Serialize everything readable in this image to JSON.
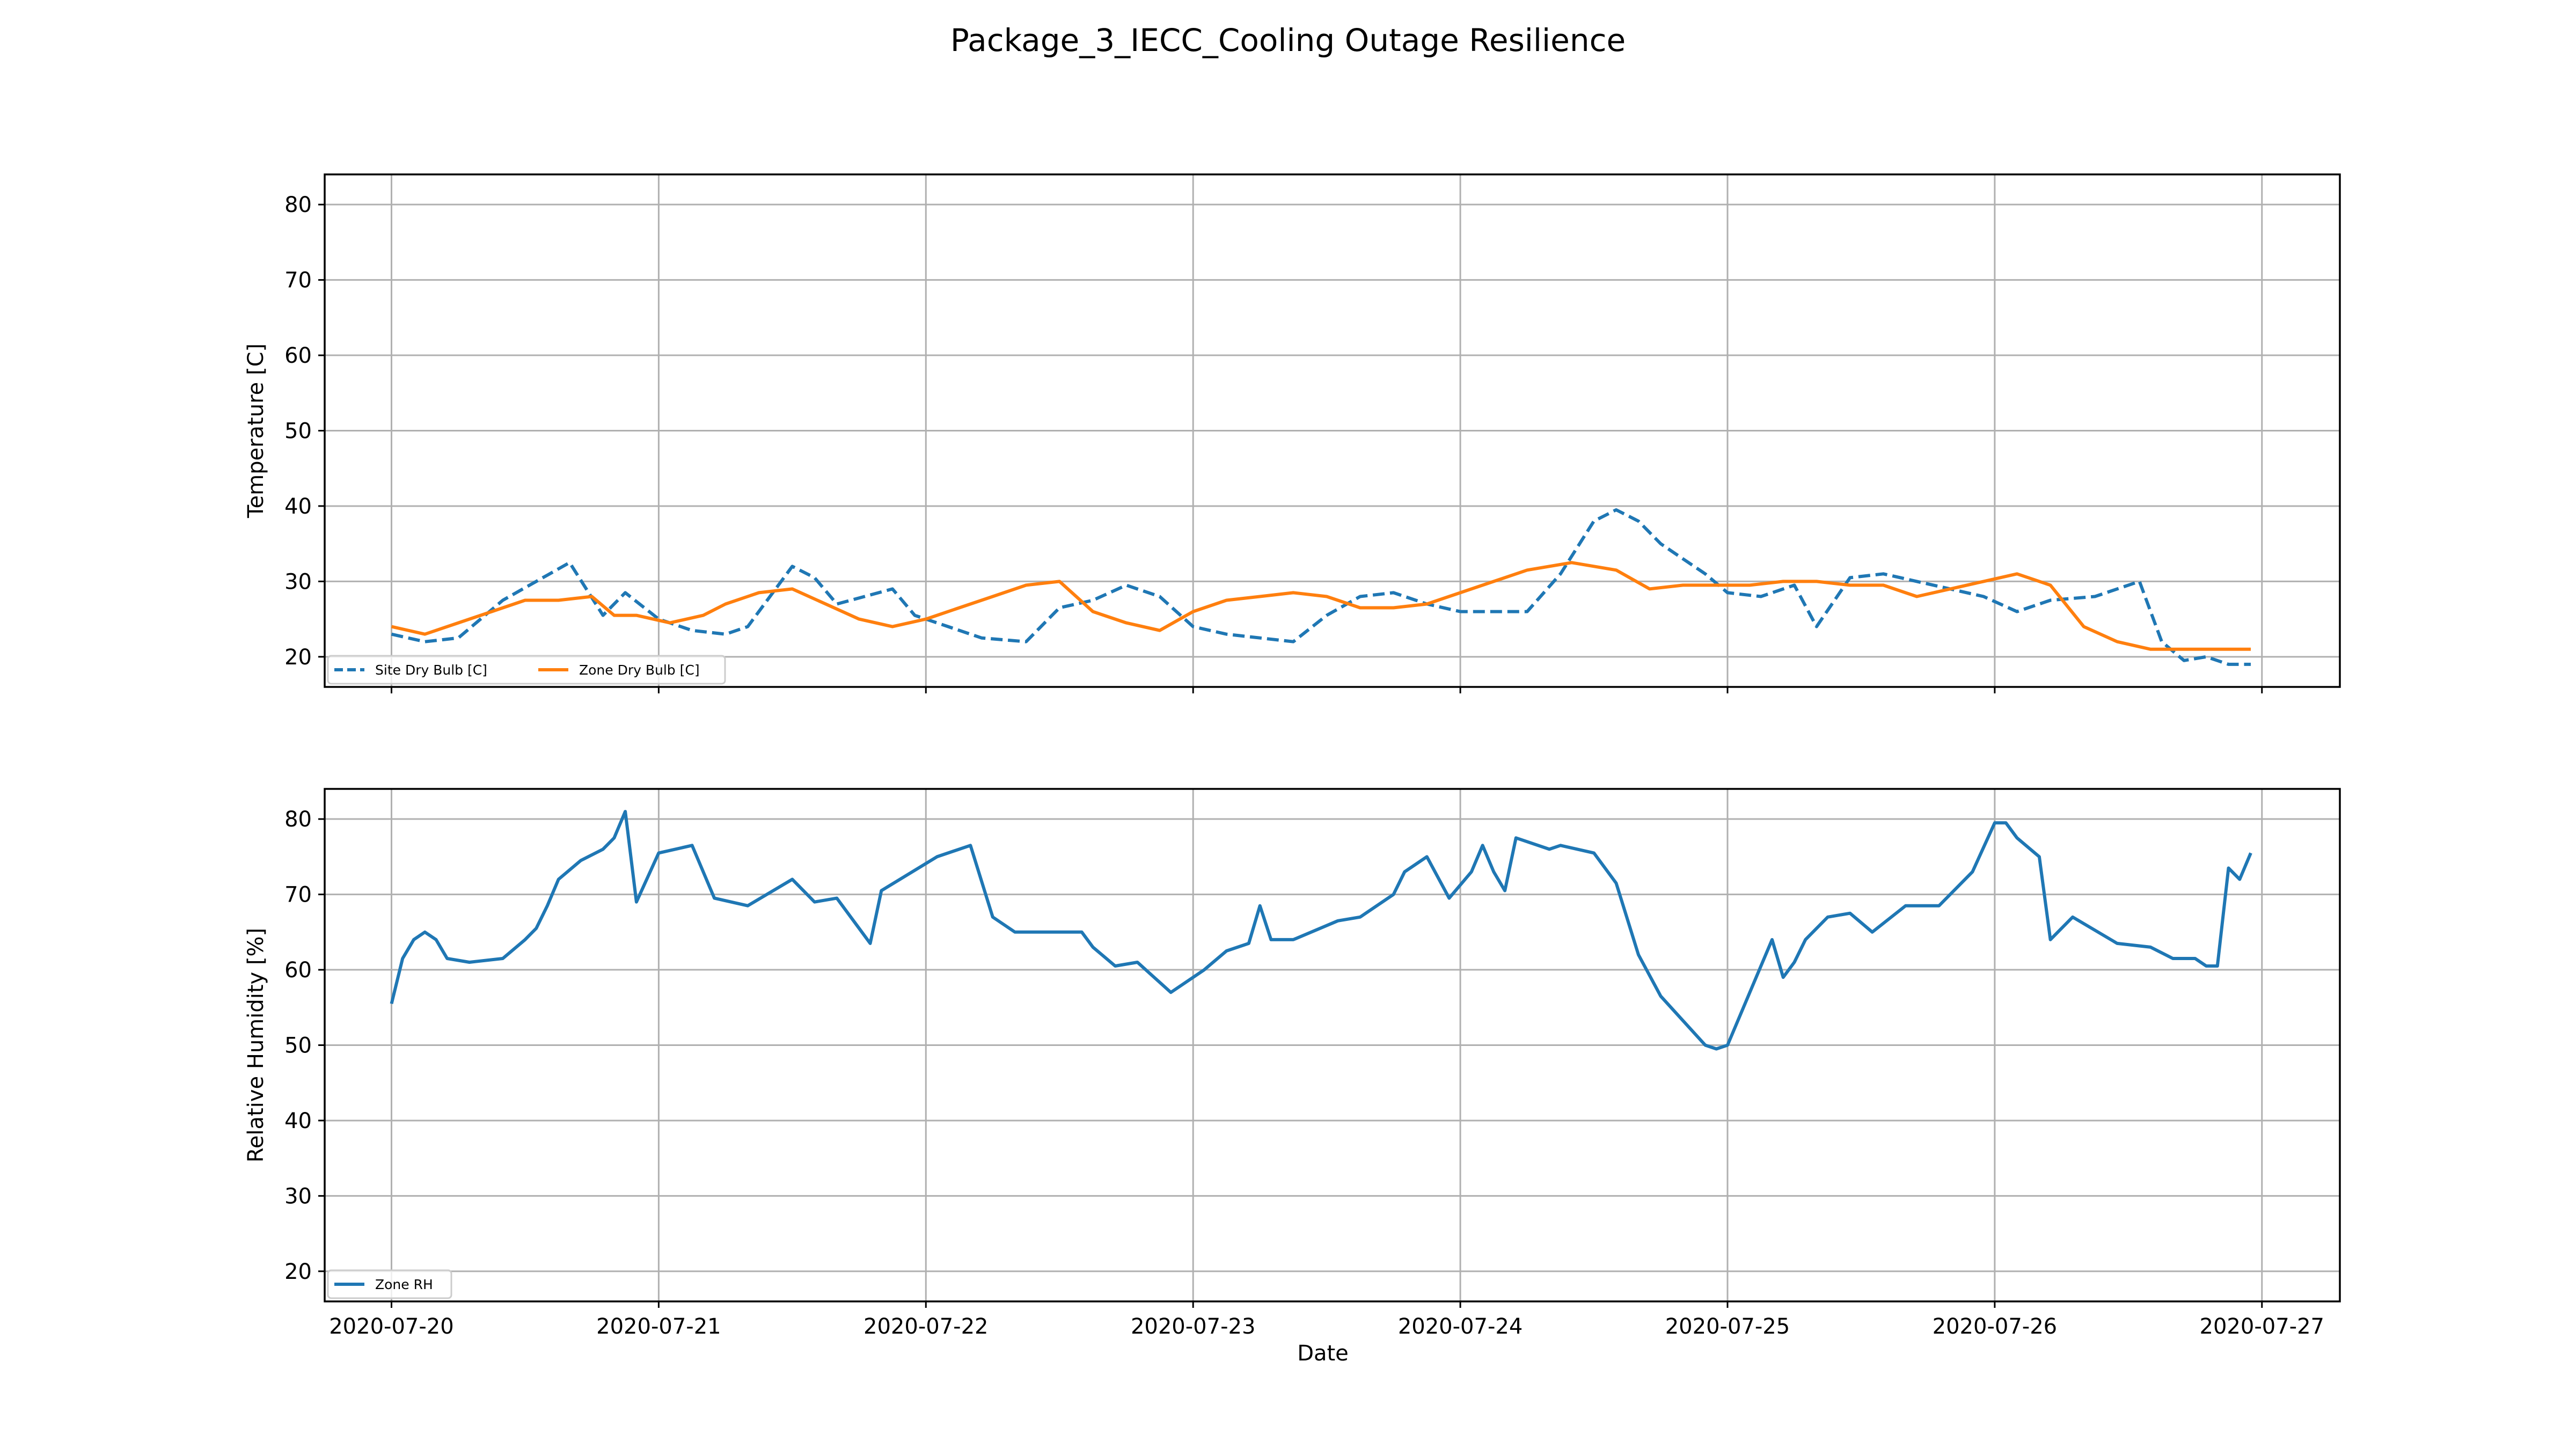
{
  "figure": {
    "title": "Package_3_IECC_Cooling Outage Resilience",
    "xlabel": "Date"
  },
  "chart_data": [
    {
      "type": "line",
      "title": "",
      "xlabel": "",
      "ylabel": "Temperature [C]",
      "xlim": [
        "2020-07-19 18:00",
        "2020-07-27 07:00"
      ],
      "ylim": [
        16,
        84
      ],
      "xticks": [
        "2020-07-20",
        "2020-07-21",
        "2020-07-22",
        "2020-07-23",
        "2020-07-24",
        "2020-07-25",
        "2020-07-26",
        "2020-07-27"
      ],
      "yticks": [
        20,
        30,
        40,
        50,
        60,
        70,
        80
      ],
      "x_tick_labels_visible": false,
      "grid": true,
      "legend": {
        "placement": "lower-left",
        "columns": 2
      },
      "series": [
        {
          "name": "Site Dry Bulb [C]",
          "color": "#1f77b4",
          "style": "dashed",
          "x": [
            "2020-07-20 00:00",
            "2020-07-20 03:00",
            "2020-07-20 06:00",
            "2020-07-20 10:00",
            "2020-07-20 16:00",
            "2020-07-20 19:00",
            "2020-07-20 21:00",
            "2020-07-21 00:00",
            "2020-07-21 03:00",
            "2020-07-21 06:00",
            "2020-07-21 08:00",
            "2020-07-21 12:00",
            "2020-07-21 14:00",
            "2020-07-21 16:00",
            "2020-07-21 21:00",
            "2020-07-21 23:00",
            "2020-07-22 02:00",
            "2020-07-22 05:00",
            "2020-07-22 09:00",
            "2020-07-22 12:00",
            "2020-07-22 15:00",
            "2020-07-22 18:00",
            "2020-07-22 21:00",
            "2020-07-23 00:00",
            "2020-07-23 03:00",
            "2020-07-23 06:00",
            "2020-07-23 09:00",
            "2020-07-23 12:00",
            "2020-07-23 15:00",
            "2020-07-23 18:00",
            "2020-07-23 21:00",
            "2020-07-24 00:00",
            "2020-07-24 03:00",
            "2020-07-24 06:00",
            "2020-07-24 09:00",
            "2020-07-24 12:00",
            "2020-07-24 14:00",
            "2020-07-24 16:00",
            "2020-07-24 18:00",
            "2020-07-24 20:00",
            "2020-07-24 22:00",
            "2020-07-25 00:00",
            "2020-07-25 03:00",
            "2020-07-25 06:00",
            "2020-07-25 08:00",
            "2020-07-25 11:00",
            "2020-07-25 14:00",
            "2020-07-25 17:00",
            "2020-07-25 20:00",
            "2020-07-25 23:00",
            "2020-07-26 02:00",
            "2020-07-26 05:00",
            "2020-07-26 09:00",
            "2020-07-26 13:00",
            "2020-07-26 15:00",
            "2020-07-26 17:00",
            "2020-07-26 19:00",
            "2020-07-26 21:00",
            "2020-07-26 23:00"
          ],
          "y": [
            23,
            22,
            22.5,
            27.5,
            32.5,
            25.5,
            28.5,
            25,
            23.5,
            23,
            24,
            32,
            30.5,
            27,
            29,
            25.5,
            24,
            22.5,
            22,
            26.5,
            27.5,
            29.5,
            28,
            24,
            23,
            22.5,
            22,
            25.5,
            28,
            28.5,
            27,
            26,
            26,
            26,
            31,
            38,
            39.5,
            38,
            35,
            33,
            31,
            28.5,
            28,
            29.5,
            24,
            30.5,
            31,
            30,
            29,
            28,
            26,
            27.5,
            28,
            30,
            22,
            19.5,
            20,
            19,
            19
          ]
        },
        {
          "name": "Zone Dry Bulb [C]",
          "color": "#ff7f0e",
          "style": "solid",
          "x": [
            "2020-07-20 00:00",
            "2020-07-20 03:00",
            "2020-07-20 06:00",
            "2020-07-20 09:00",
            "2020-07-20 12:00",
            "2020-07-20 15:00",
            "2020-07-20 18:00",
            "2020-07-20 20:00",
            "2020-07-20 22:00",
            "2020-07-21 01:00",
            "2020-07-21 04:00",
            "2020-07-21 06:00",
            "2020-07-21 09:00",
            "2020-07-21 12:00",
            "2020-07-21 15:00",
            "2020-07-21 18:00",
            "2020-07-21 21:00",
            "2020-07-22 00:00",
            "2020-07-22 03:00",
            "2020-07-22 06:00",
            "2020-07-22 09:00",
            "2020-07-22 12:00",
            "2020-07-22 15:00",
            "2020-07-22 16:00",
            "2020-07-22 18:00",
            "2020-07-22 21:00",
            "2020-07-23 00:00",
            "2020-07-23 03:00",
            "2020-07-23 06:00",
            "2020-07-23 09:00",
            "2020-07-23 12:00",
            "2020-07-23 15:00",
            "2020-07-23 18:00",
            "2020-07-23 21:00",
            "2020-07-24 00:00",
            "2020-07-24 03:00",
            "2020-07-24 06:00",
            "2020-07-24 10:00",
            "2020-07-24 14:00",
            "2020-07-24 17:00",
            "2020-07-24 20:00",
            "2020-07-24 23:00",
            "2020-07-25 02:00",
            "2020-07-25 05:00",
            "2020-07-25 08:00",
            "2020-07-25 11:00",
            "2020-07-25 14:00",
            "2020-07-25 17:00",
            "2020-07-25 20:00",
            "2020-07-25 23:00",
            "2020-07-26 02:00",
            "2020-07-26 05:00",
            "2020-07-26 08:00",
            "2020-07-26 11:00",
            "2020-07-26 14:00",
            "2020-07-26 18:00",
            "2020-07-26 19:00",
            "2020-07-26 21:00",
            "2020-07-26 23:00"
          ],
          "y": [
            24,
            23,
            24.5,
            26,
            27.5,
            27.5,
            28,
            25.5,
            25.5,
            24.5,
            25.5,
            27,
            28.5,
            29,
            27,
            25,
            24,
            25,
            26.5,
            28,
            29.5,
            30,
            26,
            25.5,
            24.5,
            23.5,
            26,
            27.5,
            28,
            28.5,
            28,
            26.5,
            26.5,
            27,
            28.5,
            30,
            31.5,
            32.5,
            31.5,
            29,
            29.5,
            29.5,
            29.5,
            30,
            30,
            29.5,
            29.5,
            28,
            29,
            30,
            31,
            29.5,
            24,
            22,
            21,
            21,
            21,
            21,
            21
          ]
        }
      ]
    },
    {
      "type": "line",
      "title": "",
      "xlabel": "Date",
      "ylabel": "Relative Humidity [%]",
      "xlim": [
        "2020-07-19 18:00",
        "2020-07-27 07:00"
      ],
      "ylim": [
        16,
        84
      ],
      "xticks": [
        "2020-07-20",
        "2020-07-21",
        "2020-07-22",
        "2020-07-23",
        "2020-07-24",
        "2020-07-25",
        "2020-07-26",
        "2020-07-27"
      ],
      "yticks": [
        20,
        30,
        40,
        50,
        60,
        70,
        80
      ],
      "x_tick_labels_visible": true,
      "grid": true,
      "legend": {
        "placement": "lower-left",
        "columns": 1
      },
      "series": [
        {
          "name": "Zone RH",
          "color": "#1f77b4",
          "style": "solid",
          "x": [
            "2020-07-20 00:00",
            "2020-07-20 01:00",
            "2020-07-20 02:00",
            "2020-07-20 03:00",
            "2020-07-20 04:00",
            "2020-07-20 05:00",
            "2020-07-20 07:00",
            "2020-07-20 10:00",
            "2020-07-20 12:00",
            "2020-07-20 13:00",
            "2020-07-20 14:00",
            "2020-07-20 15:00",
            "2020-07-20 17:00",
            "2020-07-20 19:00",
            "2020-07-20 20:00",
            "2020-07-20 21:00",
            "2020-07-20 22:00",
            "2020-07-21 00:00",
            "2020-07-21 03:00",
            "2020-07-21 05:00",
            "2020-07-21 08:00",
            "2020-07-21 12:00",
            "2020-07-21 14:00",
            "2020-07-21 16:00",
            "2020-07-21 18:00",
            "2020-07-21 19:00",
            "2020-07-21 20:00",
            "2020-07-22 01:00",
            "2020-07-22 04:00",
            "2020-07-22 06:00",
            "2020-07-22 08:00",
            "2020-07-22 14:00",
            "2020-07-22 15:00",
            "2020-07-22 17:00",
            "2020-07-22 19:00",
            "2020-07-22 22:00",
            "2020-07-23 01:00",
            "2020-07-23 03:00",
            "2020-07-23 05:00",
            "2020-07-23 06:00",
            "2020-07-23 07:00",
            "2020-07-23 09:00",
            "2020-07-23 13:00",
            "2020-07-23 15:00",
            "2020-07-23 18:00",
            "2020-07-23 19:00",
            "2020-07-23 21:00",
            "2020-07-23 23:00",
            "2020-07-24 01:00",
            "2020-07-24 02:00",
            "2020-07-24 03:00",
            "2020-07-24 04:00",
            "2020-07-24 05:00",
            "2020-07-24 08:00",
            "2020-07-24 09:00",
            "2020-07-24 12:00",
            "2020-07-24 14:00",
            "2020-07-24 16:00",
            "2020-07-24 18:00",
            "2020-07-24 22:00",
            "2020-07-24 23:00",
            "2020-07-25 00:00",
            "2020-07-25 04:00",
            "2020-07-25 05:00",
            "2020-07-25 06:00",
            "2020-07-25 07:00",
            "2020-07-25 09:00",
            "2020-07-25 11:00",
            "2020-07-25 13:00",
            "2020-07-25 16:00",
            "2020-07-25 19:00",
            "2020-07-25 22:00",
            "2020-07-26 00:00",
            "2020-07-26 01:00",
            "2020-07-26 02:00",
            "2020-07-26 04:00",
            "2020-07-26 05:00",
            "2020-07-26 07:00",
            "2020-07-26 11:00",
            "2020-07-26 14:00",
            "2020-07-26 16:00",
            "2020-07-26 18:00",
            "2020-07-26 19:00",
            "2020-07-26 20:00",
            "2020-07-26 21:00",
            "2020-07-26 22:00",
            "2020-07-26 23:00"
          ],
          "y": [
            55.5,
            61.5,
            64,
            65,
            64,
            61.5,
            61,
            61.5,
            64,
            65.5,
            68.5,
            72,
            74.5,
            76,
            77.5,
            81,
            69,
            75.5,
            76.5,
            69.5,
            68.5,
            72,
            69,
            69.5,
            65.5,
            63.5,
            70.5,
            75,
            76.5,
            67,
            65,
            65,
            63,
            60.5,
            61,
            57,
            60,
            62.5,
            63.5,
            68.5,
            64,
            64,
            66.5,
            67,
            70,
            73,
            75,
            69.5,
            73,
            76.5,
            73,
            70.5,
            77.5,
            76,
            76.5,
            75.5,
            71.5,
            62,
            56.5,
            50,
            49.5,
            50,
            64,
            59,
            61,
            64,
            67,
            67.5,
            65,
            68.5,
            68.5,
            73,
            79.5,
            79.5,
            77.5,
            75,
            64,
            67,
            63.5,
            63,
            61.5,
            61.5,
            60.5,
            60.5,
            73.5,
            72,
            75.5
          ]
        }
      ]
    }
  ]
}
